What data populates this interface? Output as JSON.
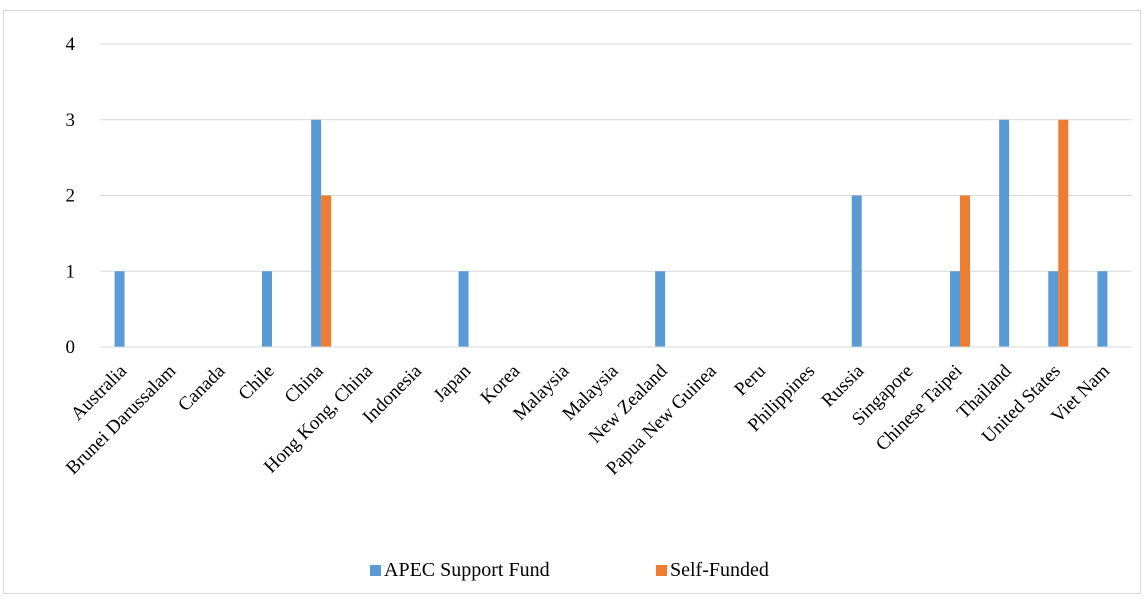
{
  "chart_data": {
    "type": "bar",
    "title": "",
    "xlabel": "",
    "ylabel": "",
    "ylim": [
      0,
      4
    ],
    "yticks": [
      0,
      1,
      2,
      3,
      4
    ],
    "grid": true,
    "legend_position": "bottom",
    "categories": [
      "Australia",
      "Brunei Darussalam",
      "Canada",
      "Chile",
      "China",
      "Hong Kong, China",
      "Indonesia",
      "Japan",
      "Korea",
      "Malaysia",
      "Malaysia",
      "New Zealand",
      "Papua New Guinea",
      "Peru",
      "Philippines",
      "Russia",
      "Singapore",
      "Chinese Taipei",
      "Thailand",
      "United States",
      "Viet Nam"
    ],
    "series": [
      {
        "name": "APEC Support Fund",
        "color": "#5b9bd5",
        "values": [
          1,
          0,
          0,
          1,
          3,
          0,
          0,
          1,
          0,
          0,
          0,
          1,
          0,
          0,
          0,
          2,
          0,
          1,
          3,
          1,
          1
        ]
      },
      {
        "name": "Self-Funded",
        "color": "#ed7d31",
        "values": [
          0,
          0,
          0,
          0,
          2,
          0,
          0,
          0,
          0,
          0,
          0,
          0,
          0,
          0,
          0,
          0,
          0,
          2,
          0,
          3,
          0
        ]
      }
    ]
  }
}
